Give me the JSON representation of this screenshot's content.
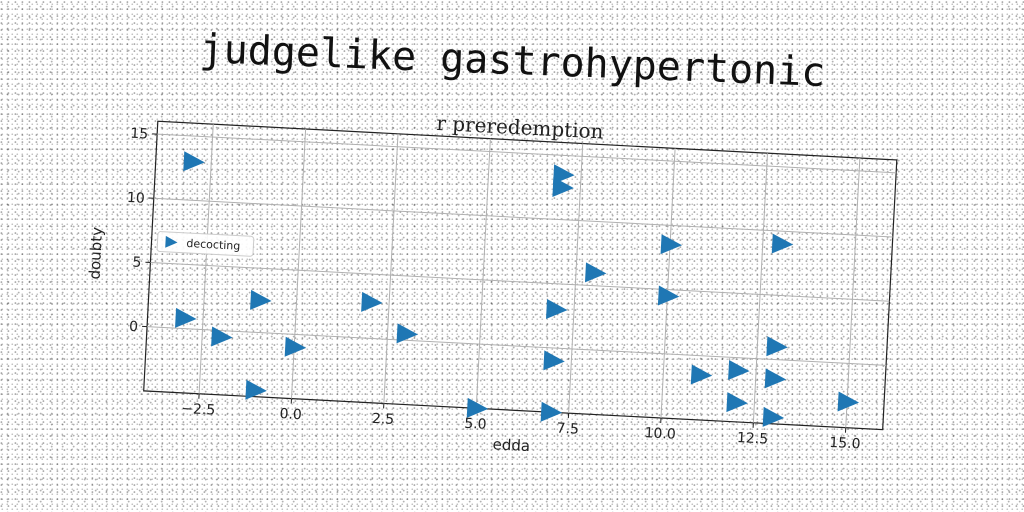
{
  "chart_data": {
    "type": "scatter",
    "title": "judgelike gastrohypertonic",
    "subtitle": "r preredemption",
    "xlabel": "edda",
    "ylabel": "doubty",
    "xlim": [
      -4,
      16
    ],
    "ylim": [
      -5,
      16
    ],
    "xticks": [
      -2.5,
      0.0,
      2.5,
      5.0,
      7.5,
      10.0,
      12.5,
      15.0
    ],
    "xtick_labels": [
      "−2.5",
      "0.0",
      "2.5",
      "5.0",
      "7.5",
      "10.0",
      "12.5",
      "15.0"
    ],
    "yticks": [
      0,
      5,
      10,
      15
    ],
    "ytick_labels": [
      "0",
      "5",
      "10",
      "15"
    ],
    "grid": true,
    "legend_position": "center-left",
    "marker": "triangle-right",
    "color": "#1f77b4",
    "series": [
      {
        "name": "decocting",
        "points": [
          [
            -3.0,
            13.0
          ],
          [
            -3.0,
            0.8
          ],
          [
            -2.0,
            -0.5
          ],
          [
            -1.0,
            2.5
          ],
          [
            -1.0,
            -4.5
          ],
          [
            0.0,
            -1.0
          ],
          [
            2.0,
            2.8
          ],
          [
            3.0,
            0.5
          ],
          [
            5.0,
            -5.0
          ],
          [
            7.0,
            -5.0
          ],
          [
            7.0,
            3.0
          ],
          [
            7.0,
            -1.0
          ],
          [
            7.0,
            13.5
          ],
          [
            7.0,
            12.5
          ],
          [
            8.0,
            6.0
          ],
          [
            10.0,
            4.5
          ],
          [
            10.0,
            8.5
          ],
          [
            11.0,
            -1.5
          ],
          [
            12.0,
            -1.0
          ],
          [
            12.0,
            -3.5
          ],
          [
            13.0,
            9.0
          ],
          [
            13.0,
            1.0
          ],
          [
            13.0,
            -1.5
          ],
          [
            13.0,
            -4.5
          ],
          [
            15.0,
            -3.0
          ]
        ]
      }
    ]
  }
}
